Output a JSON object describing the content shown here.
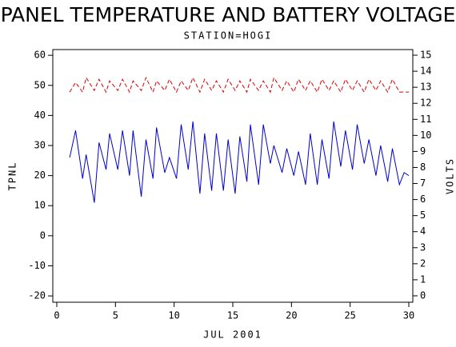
{
  "chart_data": {
    "type": "line",
    "title": "PANEL TEMPERATURE AND BATTERY VOLTAGE",
    "subtitle": "STATION=HOGI",
    "xlabel": "JUL 2001",
    "ylabel": "TPNL",
    "y2label": "VOLTS",
    "x": [
      1.1,
      1.6,
      2.2,
      2.5,
      3.2,
      3.6,
      4.2,
      4.5,
      5.2,
      5.6,
      6.2,
      6.5,
      7.2,
      7.6,
      8.2,
      8.5,
      9.2,
      9.6,
      10.2,
      10.6,
      11.2,
      11.6,
      12.2,
      12.6,
      13.2,
      13.6,
      14.2,
      14.6,
      15.2,
      15.6,
      16.2,
      16.5,
      17.2,
      17.6,
      18.2,
      18.5,
      19.2,
      19.6,
      20.2,
      20.6,
      21.2,
      21.6,
      22.2,
      22.6,
      23.2,
      23.6,
      24.2,
      24.6,
      25.2,
      25.6,
      26.2,
      26.6,
      27.2,
      27.6,
      28.2,
      28.6,
      29.2,
      29.6,
      30.0
    ],
    "series": [
      {
        "color": "#0000cc",
        "values": [
          26,
          35,
          19,
          27,
          11,
          31,
          22,
          34,
          22,
          35,
          20,
          35,
          13,
          32,
          19,
          36,
          21,
          26,
          19,
          37,
          22,
          38,
          14,
          34,
          15,
          34,
          15,
          32,
          14,
          33,
          18,
          37,
          17,
          37,
          24,
          30,
          21,
          29,
          20,
          28,
          17,
          34,
          17,
          32,
          19,
          38,
          23,
          35,
          22,
          37,
          24,
          32,
          20,
          30,
          18,
          29,
          17,
          21,
          20
        ]
      },
      {
        "color": "#dd0000",
        "axis": "y2",
        "dashed": true,
        "values": [
          12.7,
          13.3,
          12.7,
          13.6,
          12.8,
          13.5,
          12.7,
          13.4,
          12.8,
          13.5,
          12.7,
          13.4,
          12.8,
          13.6,
          12.7,
          13.4,
          12.8,
          13.5,
          12.7,
          13.4,
          12.8,
          13.6,
          12.7,
          13.5,
          12.8,
          13.4,
          12.7,
          13.5,
          12.8,
          13.4,
          12.7,
          13.5,
          12.8,
          13.4,
          12.7,
          13.6,
          12.8,
          13.4,
          12.7,
          13.5,
          12.8,
          13.4,
          12.7,
          13.5,
          12.8,
          13.4,
          12.7,
          13.5,
          12.8,
          13.4,
          12.7,
          13.5,
          12.8,
          13.4,
          12.7,
          13.5,
          12.7,
          12.7,
          12.7
        ]
      }
    ],
    "xlim": [
      -0.34,
      30.34
    ],
    "xticks": [
      0,
      5,
      10,
      15,
      20,
      25,
      30
    ],
    "ylim": [
      -22.1,
      61.9
    ],
    "yticks": [
      -20,
      -10,
      0,
      10,
      20,
      30,
      40,
      50,
      60
    ],
    "y2lim": [
      -0.4,
      15.35
    ],
    "y2ticks": [
      0,
      1,
      2,
      3,
      4,
      5,
      6,
      7,
      8,
      9,
      10,
      11,
      12,
      13,
      14,
      15
    ]
  }
}
